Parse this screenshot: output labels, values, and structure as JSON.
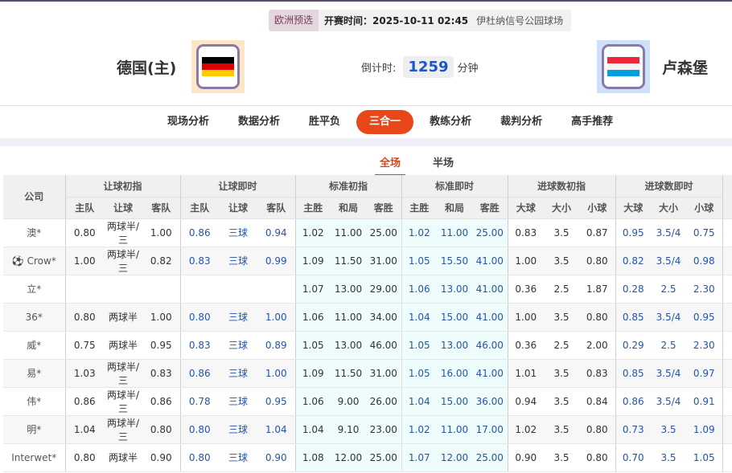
{
  "header": {
    "league": "欧洲预选",
    "kickoff": "开赛时间：2025-10-11 02:45",
    "venue": "伊杜纳信号公园球场",
    "home": "德国(主)",
    "away": "卢森堡",
    "countdown_label": "倒计时:",
    "countdown_value": "1259",
    "countdown_unit": "分钟",
    "home_flag_colors": [
      "#000000",
      "#dd0000",
      "#ffcc00"
    ],
    "away_flag_colors": [
      "#ed2939",
      "#ffffff",
      "#00a1de"
    ]
  },
  "nav": [
    {
      "label": "现场分析"
    },
    {
      "label": "数据分析"
    },
    {
      "label": "胜平负"
    },
    {
      "label": "三合一",
      "active": true
    },
    {
      "label": "教练分析"
    },
    {
      "label": "裁判分析"
    },
    {
      "label": "高手推荐"
    }
  ],
  "tabs": [
    {
      "label": "全场",
      "active": true
    },
    {
      "label": "半场"
    }
  ],
  "table": {
    "company_header": "公司",
    "groups": [
      "让球初指",
      "让球即时",
      "标准初指",
      "标准即时",
      "进球数初指",
      "进球数即时"
    ],
    "subheaders": [
      "主队",
      "让球",
      "客队",
      "主队",
      "让球",
      "客队",
      "主胜",
      "和局",
      "客胜",
      "主胜",
      "和局",
      "客胜",
      "大球",
      "大小",
      "小球",
      "大球",
      "大小",
      "小球"
    ],
    "rows": [
      {
        "company": "澳*",
        "cells": [
          "0.80",
          "两球半/三",
          "1.00",
          "0.86",
          "三球",
          "0.94",
          "1.02",
          "11.00",
          "25.00",
          "1.02",
          "11.00",
          "25.00",
          "0.83",
          "3.5",
          "0.87",
          "0.95",
          "3.5/4",
          "0.75"
        ]
      },
      {
        "company": "Crow*",
        "icon": "soccer-ball",
        "cells": [
          "1.00",
          "两球半/三",
          "0.82",
          "0.83",
          "三球",
          "0.99",
          "1.09",
          "11.50",
          "31.00",
          "1.05",
          "15.50",
          "41.00",
          "1.00",
          "3.5",
          "0.80",
          "0.82",
          "3.5/4",
          "0.98"
        ]
      },
      {
        "company": "立*",
        "cells": [
          "",
          "",
          "",
          "",
          "",
          "",
          "1.07",
          "13.00",
          "29.00",
          "1.06",
          "13.00",
          "41.00",
          "0.36",
          "2.5",
          "1.87",
          "0.28",
          "2.5",
          "2.30"
        ]
      },
      {
        "company": "36*",
        "cells": [
          "0.80",
          "两球半",
          "1.00",
          "0.80",
          "三球",
          "1.00",
          "1.06",
          "11.00",
          "34.00",
          "1.04",
          "15.00",
          "41.00",
          "1.00",
          "3.5",
          "0.80",
          "0.85",
          "3.5/4",
          "0.95"
        ]
      },
      {
        "company": "威*",
        "cells": [
          "0.75",
          "两球半",
          "0.95",
          "0.83",
          "三球",
          "0.89",
          "1.05",
          "13.00",
          "46.00",
          "1.05",
          "13.00",
          "46.00",
          "0.36",
          "2.5",
          "2.00",
          "0.29",
          "2.5",
          "2.30"
        ]
      },
      {
        "company": "易*",
        "cells": [
          "1.03",
          "两球半/三",
          "0.83",
          "0.86",
          "三球",
          "1.00",
          "1.09",
          "11.50",
          "31.00",
          "1.05",
          "16.00",
          "41.00",
          "1.01",
          "3.5",
          "0.83",
          "0.85",
          "3.5/4",
          "0.97"
        ]
      },
      {
        "company": "伟*",
        "cells": [
          "0.86",
          "两球半/三",
          "0.86",
          "0.78",
          "三球",
          "0.95",
          "1.06",
          "9.00",
          "26.00",
          "1.04",
          "15.00",
          "36.00",
          "0.94",
          "3.5",
          "0.84",
          "0.86",
          "3.5/4",
          "0.91"
        ]
      },
      {
        "company": "明*",
        "cells": [
          "1.04",
          "两球半/三",
          "0.80",
          "0.80",
          "三球",
          "1.04",
          "1.04",
          "9.10",
          "23.00",
          "1.02",
          "11.00",
          "17.00",
          "1.02",
          "3.5",
          "0.80",
          "0.73",
          "3.5",
          "1.09"
        ]
      },
      {
        "company": "Interwet*",
        "cells": [
          "0.80",
          "两球半",
          "0.90",
          "0.80",
          "三球",
          "0.90",
          "1.08",
          "12.00",
          "25.00",
          "1.07",
          "12.00",
          "25.00",
          "0.90",
          "3.5",
          "0.80",
          "0.70",
          "3.5",
          "1.05"
        ]
      }
    ]
  }
}
